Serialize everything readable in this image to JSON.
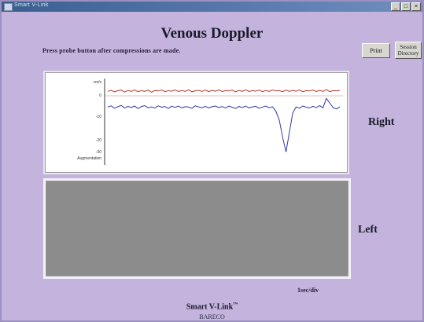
{
  "window": {
    "title": "Smart V-Link"
  },
  "header": {
    "title": "Venous Doppler",
    "instruction": "Press probe button after compressions are made."
  },
  "toolbar": {
    "print_label": "Print",
    "session_label_line1": "Session",
    "session_label_line2": "Directory"
  },
  "panels": {
    "right_label": "Right",
    "left_label": "Left"
  },
  "chart_data": {
    "type": "line",
    "yaxis_labels": [
      "cm/s",
      "0",
      "-10",
      "-20",
      "-30",
      "Augmentation"
    ],
    "ylim": [
      -40,
      10
    ],
    "grid": false,
    "series": [
      {
        "color": "#c0392b",
        "values": [
          2.6,
          3.2,
          2.3,
          3.0,
          3.3,
          2.2,
          3.1,
          2.6,
          3.4,
          2.4,
          3.0,
          2.6,
          3.3,
          2.1,
          3.1,
          2.8,
          3.4,
          2.4,
          3.0,
          2.7,
          3.4,
          2.5,
          3.1,
          2.6,
          3.5,
          2.3,
          2.9,
          3.2,
          2.6,
          3.3,
          2.4,
          3.1,
          2.7,
          3.4,
          2.5,
          3.0,
          2.8,
          3.3,
          2.3,
          3.2,
          2.6,
          3.5,
          2.5,
          3.0,
          2.7,
          3.3,
          2.4,
          3.1,
          2.6,
          3.4,
          2.8,
          3.0,
          2.4,
          3.3,
          2.6,
          3.1,
          2.7,
          3.4,
          2.4,
          3.0,
          2.8,
          3.3,
          2.5,
          3.1,
          2.6,
          3.6,
          2.4,
          3.0,
          2.8,
          3.2
        ]
      },
      {
        "color": "#2e3aa8",
        "values": [
          -6.5,
          -5.8,
          -7.2,
          -6.3,
          -5.6,
          -7.0,
          -6.1,
          -6.8,
          -5.9,
          -7.4,
          -6.2,
          -5.7,
          -6.9,
          -6.4,
          -7.1,
          -5.8,
          -6.6,
          -6.2,
          -7.3,
          -6.0,
          -6.7,
          -5.9,
          -7.0,
          -6.3,
          -6.5,
          -7.2,
          -5.8,
          -6.4,
          -6.9,
          -6.1,
          -7.0,
          -6.3,
          -5.9,
          -6.8,
          -6.2,
          -7.1,
          -6.0,
          -6.6,
          -7.3,
          -6.2,
          -6.8,
          -5.9,
          -7.0,
          -6.4,
          -6.1,
          -7.2,
          -6.5,
          -6.0,
          -6.9,
          -6.3,
          -9.0,
          -14.0,
          -24.0,
          -32.5,
          -21.0,
          -10.0,
          -6.4,
          -7.2,
          -5.9,
          -6.6,
          -7.0,
          -6.1,
          -6.8,
          -5.7,
          -6.9,
          -1.5,
          -4.2,
          -6.8,
          -7.6,
          -6.3
        ]
      }
    ]
  }
}
